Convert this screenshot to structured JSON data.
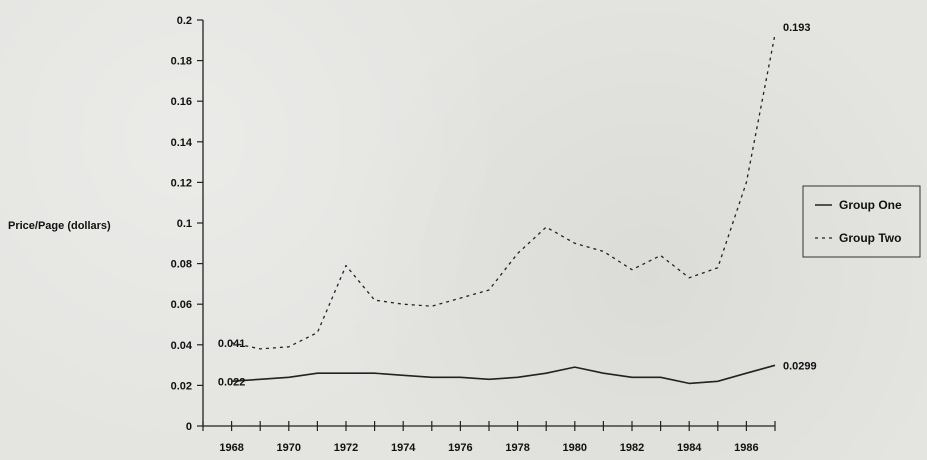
{
  "chart_data": {
    "type": "line",
    "ylabel": "Price/Page (dollars)",
    "xlabel": "",
    "ylim": [
      0,
      0.2
    ],
    "yticks": [
      0,
      0.02,
      0.04,
      0.06,
      0.08,
      0.1,
      0.12,
      0.14,
      0.16,
      0.18,
      0.2
    ],
    "ytick_labels": [
      "0",
      "0.02",
      "0.04",
      "0.06",
      "0.08",
      "0.1",
      "0.12",
      "0.14",
      "0.16",
      "0.18",
      "0.2"
    ],
    "xlim": [
      1967,
      1987
    ],
    "x": [
      1968,
      1969,
      1970,
      1971,
      1972,
      1973,
      1974,
      1975,
      1976,
      1977,
      1978,
      1979,
      1980,
      1981,
      1982,
      1983,
      1984,
      1985,
      1986,
      1987
    ],
    "xticks": [
      1968,
      1970,
      1972,
      1974,
      1976,
      1978,
      1980,
      1982,
      1984,
      1986
    ],
    "xtick_labels": [
      "1968",
      "1970",
      "1972",
      "1974",
      "1976",
      "1978",
      "1980",
      "1982",
      "1984",
      "1986"
    ],
    "series": [
      {
        "name": "Group One",
        "style": "solid",
        "color": "#222222",
        "values": [
          0.022,
          0.023,
          0.024,
          0.026,
          0.026,
          0.026,
          0.025,
          0.024,
          0.024,
          0.023,
          0.024,
          0.026,
          0.029,
          0.026,
          0.024,
          0.024,
          0.021,
          0.022,
          0.026,
          0.0299
        ]
      },
      {
        "name": "Group Two",
        "style": "dashed",
        "color": "#222222",
        "values": [
          0.041,
          0.038,
          0.039,
          0.046,
          0.079,
          0.062,
          0.06,
          0.059,
          0.063,
          0.067,
          0.085,
          0.098,
          0.09,
          0.086,
          0.077,
          0.084,
          0.073,
          0.078,
          0.12,
          0.193
        ]
      }
    ],
    "annotations": [
      {
        "text": "0.041",
        "series": 1,
        "index": 0,
        "anchor": "start"
      },
      {
        "text": "0.022",
        "series": 0,
        "index": 0,
        "anchor": "start"
      },
      {
        "text": "0.193",
        "series": 1,
        "index": 19,
        "anchor": "end"
      },
      {
        "text": "0.0299",
        "series": 0,
        "index": 19,
        "anchor": "end"
      }
    ],
    "legend_position": "right",
    "grid": false
  }
}
